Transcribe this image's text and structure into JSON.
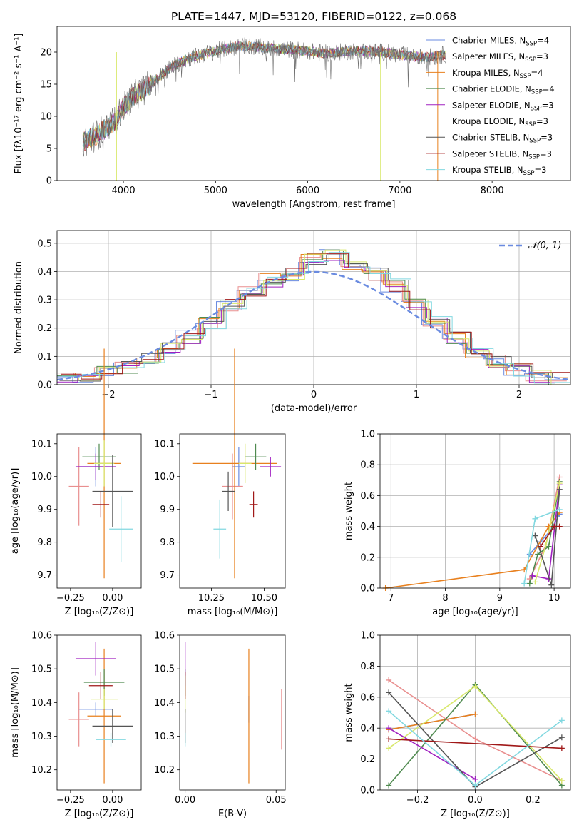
{
  "title": "PLATE=1447, MJD=53120, FIBERID=0122, z=0.068",
  "model_names": [
    "Chabrier MILES, N_SSP=4",
    "Salpeter MILES, N_SSP=3",
    "Kroupa MILES, N_SSP=4",
    "Chabrier ELODIE, N_SSP=4",
    "Salpeter ELODIE, N_SSP=3",
    "Kroupa ELODIE, N_SSP=3",
    "Chabrier STELIB, N_SSP=3",
    "Salpeter STELIB, N_SSP=3",
    "Kroupa STELIB, N_SSP=3"
  ],
  "colors": [
    "#6a8be0",
    "#e98f8f",
    "#e8801e",
    "#4f8a4f",
    "#a020c0",
    "#d8e86a",
    "#555555",
    "#a01818",
    "#82d8e0"
  ],
  "chart_data": [
    {
      "type": "line",
      "title": "PLATE=1447, MJD=53120, FIBERID=0122, z=0.068",
      "xlabel": "wavelength [Angstrom, rest frame]",
      "ylabel": "Flux [fλ10⁻¹⁷ erg cm⁻² s⁻¹ A⁻¹]",
      "xlim": [
        3280,
        8850
      ],
      "ylim": [
        0,
        24
      ],
      "xticks": [
        4000,
        5000,
        6000,
        7000,
        8000
      ],
      "yticks": [
        0,
        5,
        10,
        15,
        20
      ],
      "grid": false,
      "legend": "top-right",
      "continuum": [
        [
          3560,
          6
        ],
        [
          3700,
          7
        ],
        [
          3800,
          8
        ],
        [
          3900,
          9
        ],
        [
          4000,
          11.5
        ],
        [
          4100,
          13
        ],
        [
          4300,
          15
        ],
        [
          4500,
          17.5
        ],
        [
          4700,
          19
        ],
        [
          4900,
          19.8
        ],
        [
          5100,
          20.5
        ],
        [
          5300,
          21
        ],
        [
          5600,
          20.6
        ],
        [
          5900,
          20.3
        ],
        [
          6200,
          19.8
        ],
        [
          6500,
          20.2
        ],
        [
          6800,
          20
        ],
        [
          7100,
          19.4
        ],
        [
          7300,
          19.2
        ],
        [
          7500,
          19.6
        ]
      ],
      "spike_lines": [
        {
          "x": 3925,
          "series": 5
        },
        {
          "x": 6790,
          "series": 5
        },
        {
          "x": 7410,
          "series": 2
        }
      ]
    },
    {
      "type": "line",
      "xlabel": "(data-model)/error",
      "ylabel": "Normed distribution",
      "xlim": [
        -2.5,
        2.5
      ],
      "ylim": [
        0,
        0.545
      ],
      "xticks": [
        -2,
        -1,
        0,
        1,
        2
      ],
      "yticks": [
        0.0,
        0.1,
        0.2,
        0.3,
        0.4,
        0.5
      ],
      "grid": true,
      "legend": "top-right",
      "legend_label": "𝒩(0, 1)",
      "bin_edges": [
        -2.5,
        -2.3,
        -2.1,
        -1.9,
        -1.7,
        -1.5,
        -1.3,
        -1.1,
        -0.9,
        -0.7,
        -0.5,
        -0.3,
        -0.1,
        0.1,
        0.3,
        0.5,
        0.7,
        0.9,
        1.1,
        1.3,
        1.5,
        1.7,
        1.9,
        2.1,
        2.3,
        2.5
      ],
      "histogram_baseline": [
        0.02,
        0.03,
        0.04,
        0.06,
        0.09,
        0.13,
        0.17,
        0.22,
        0.28,
        0.33,
        0.37,
        0.39,
        0.44,
        0.46,
        0.43,
        0.39,
        0.35,
        0.28,
        0.22,
        0.17,
        0.12,
        0.08,
        0.05,
        0.03,
        0.02
      ]
    },
    {
      "type": "scatter",
      "xlabel": "Z [log₁₀(Z/Z⊙)]",
      "ylabel": "age  [log₁₀(age/yr)]",
      "xlim": [
        -0.33,
        0.17
      ],
      "ylim": [
        9.66,
        10.13
      ],
      "xticks": [
        -0.25,
        0.0
      ],
      "yticks": [
        9.7,
        9.8,
        9.9,
        10.0,
        10.1
      ],
      "points": [
        {
          "x": -0.1,
          "y": 10.03,
          "xerr": 0.1,
          "yerr": 0.06
        },
        {
          "x": -0.2,
          "y": 9.97,
          "xerr": 0.06,
          "yerr": 0.12
        },
        {
          "x": -0.05,
          "y": 10.04,
          "xerr": 0.1,
          "yerr": 0.35
        },
        {
          "x": -0.08,
          "y": 10.06,
          "xerr": 0.1,
          "yerr": 0.04
        },
        {
          "x": -0.1,
          "y": 10.03,
          "xerr": 0.12,
          "yerr": 0.04
        },
        {
          "x": -0.05,
          "y": 10.04,
          "xerr": 0.06,
          "yerr": 0.07
        },
        {
          "x": 0.0,
          "y": 9.955,
          "xerr": 0.12,
          "yerr": 0.11
        },
        {
          "x": -0.07,
          "y": 9.915,
          "xerr": 0.05,
          "yerr": 0.04
        },
        {
          "x": 0.05,
          "y": 9.84,
          "xerr": 0.07,
          "yerr": 0.1
        }
      ]
    },
    {
      "type": "scatter",
      "xlabel": "mass [log₁₀(M/M⊙)]",
      "ylabel": "",
      "xlim": [
        10.1,
        10.6
      ],
      "ylim": [
        9.66,
        10.13
      ],
      "xticks": [
        10.25,
        10.5
      ],
      "yticks": [
        9.7,
        9.8,
        9.9,
        10.0,
        10.1
      ],
      "points": [
        {
          "x": 10.38,
          "y": 10.03,
          "xerr": 0.03,
          "yerr": 0.06
        },
        {
          "x": 10.35,
          "y": 9.97,
          "xerr": 0.05,
          "yerr": 0.1
        },
        {
          "x": 10.36,
          "y": 10.04,
          "xerr": 0.2,
          "yerr": 0.35
        },
        {
          "x": 10.46,
          "y": 10.06,
          "xerr": 0.05,
          "yerr": 0.04
        },
        {
          "x": 10.53,
          "y": 10.03,
          "xerr": 0.05,
          "yerr": 0.03
        },
        {
          "x": 10.41,
          "y": 10.04,
          "xerr": 0.03,
          "yerr": 0.06
        },
        {
          "x": 10.33,
          "y": 9.955,
          "xerr": 0.03,
          "yerr": 0.06
        },
        {
          "x": 10.45,
          "y": 9.915,
          "xerr": 0.02,
          "yerr": 0.04
        },
        {
          "x": 10.29,
          "y": 9.84,
          "xerr": 0.03,
          "yerr": 0.09
        }
      ]
    },
    {
      "type": "line",
      "xlabel": "age  [log₁₀(age/yr)]",
      "ylabel": "mass weight",
      "xlim": [
        6.8,
        10.3
      ],
      "ylim": [
        0,
        1.0
      ],
      "xticks": [
        7,
        8,
        9,
        10
      ],
      "yticks": [
        0.0,
        0.2,
        0.4,
        0.6,
        0.8,
        1.0
      ],
      "grid": true,
      "series": [
        {
          "x": [
            9.55,
            9.75,
            9.95,
            10.1
          ],
          "y": [
            0.22,
            0.3,
            0.38,
            0.48
          ]
        },
        {
          "x": [
            9.55,
            9.85,
            10.1
          ],
          "y": [
            0.06,
            0.28,
            0.72
          ]
        },
        {
          "x": [
            6.9,
            9.45,
            9.9,
            10.1
          ],
          "y": [
            0.0,
            0.12,
            0.4,
            0.49
          ]
        },
        {
          "x": [
            9.55,
            9.7,
            9.9,
            10.1
          ],
          "y": [
            0.03,
            0.22,
            0.27,
            0.69
          ]
        },
        {
          "x": [
            9.6,
            9.9,
            10.1
          ],
          "y": [
            0.08,
            0.06,
            0.67
          ]
        },
        {
          "x": [
            9.65,
            9.85,
            10.1
          ],
          "y": [
            0.04,
            0.28,
            0.68
          ]
        },
        {
          "x": [
            9.65,
            9.95,
            10.1
          ],
          "y": [
            0.34,
            0.02,
            0.64
          ]
        },
        {
          "x": [
            9.75,
            10.0,
            10.1
          ],
          "y": [
            0.27,
            0.4,
            0.4
          ]
        },
        {
          "x": [
            9.45,
            9.65,
            10.1
          ],
          "y": [
            0.03,
            0.45,
            0.51
          ]
        }
      ]
    },
    {
      "type": "scatter",
      "xlabel": "Z [log₁₀(Z/Z⊙)]",
      "ylabel": "mass [log₁₀(M/M⊙)]",
      "xlim": [
        -0.33,
        0.17
      ],
      "ylim": [
        10.14,
        10.6
      ],
      "xticks": [
        -0.25,
        0.0
      ],
      "yticks": [
        10.2,
        10.3,
        10.4,
        10.5,
        10.6
      ],
      "points": [
        {
          "x": -0.1,
          "y": 10.38,
          "xerr": 0.1,
          "yerr": 0.02
        },
        {
          "x": -0.2,
          "y": 10.35,
          "xerr": 0.06,
          "yerr": 0.08
        },
        {
          "x": -0.05,
          "y": 10.36,
          "xerr": 0.1,
          "yerr": 0.2
        },
        {
          "x": -0.05,
          "y": 10.46,
          "xerr": 0.12,
          "yerr": 0.04
        },
        {
          "x": -0.1,
          "y": 10.53,
          "xerr": 0.12,
          "yerr": 0.05
        },
        {
          "x": -0.05,
          "y": 10.41,
          "xerr": 0.08,
          "yerr": 0.03
        },
        {
          "x": 0.0,
          "y": 10.33,
          "xerr": 0.12,
          "yerr": 0.05
        },
        {
          "x": -0.07,
          "y": 10.45,
          "xerr": 0.07,
          "yerr": 0.04
        },
        {
          "x": -0.01,
          "y": 10.29,
          "xerr": 0.09,
          "yerr": 0.02
        }
      ]
    },
    {
      "type": "scatter",
      "xlabel": "E(B-V)",
      "ylabel": "",
      "xlim": [
        -0.003,
        0.055
      ],
      "ylim": [
        10.14,
        10.6
      ],
      "xticks": [
        0.0,
        0.05
      ],
      "yticks": [
        10.2,
        10.3,
        10.4,
        10.5,
        10.6
      ],
      "points": [
        {
          "x": 0.035,
          "y": 10.38,
          "xerr": 0,
          "yerr": 0.04
        },
        {
          "x": 0.053,
          "y": 10.35,
          "xerr": 0,
          "yerr": 0.09
        },
        {
          "x": 0.035,
          "y": 10.36,
          "xerr": 0,
          "yerr": 0.2
        },
        {
          "x": 0.0,
          "y": 10.46,
          "xerr": 0,
          "yerr": 0.04
        },
        {
          "x": 0.0,
          "y": 10.53,
          "xerr": 0,
          "yerr": 0.05
        },
        {
          "x": 0.0,
          "y": 10.41,
          "xerr": 0,
          "yerr": 0.04
        },
        {
          "x": 0.0,
          "y": 10.33,
          "xerr": 0,
          "yerr": 0.05
        },
        {
          "x": 0.0,
          "y": 10.45,
          "xerr": 0,
          "yerr": 0.04
        },
        {
          "x": 0.0,
          "y": 10.29,
          "xerr": 0,
          "yerr": 0.02
        }
      ]
    },
    {
      "type": "line",
      "xlabel": "Z [log₁₀(Z/Z⊙)]",
      "ylabel": "mass weight",
      "xlim": [
        -0.33,
        0.33
      ],
      "ylim": [
        0,
        1.0
      ],
      "xticks": [
        -0.2,
        0.0,
        0.2
      ],
      "yticks": [
        0.0,
        0.2,
        0.4,
        0.6,
        0.8,
        1.0
      ],
      "grid": true,
      "series": [
        {
          "x": [
            -0.3,
            0.0
          ],
          "y": [
            0.39,
            0.49
          ]
        },
        {
          "x": [
            -0.3,
            0.0,
            0.3
          ],
          "y": [
            0.71,
            0.33,
            0.06
          ]
        },
        {
          "x": [
            -0.3,
            0.0
          ],
          "y": [
            0.39,
            0.49
          ]
        },
        {
          "x": [
            -0.3,
            0.0,
            0.3
          ],
          "y": [
            0.03,
            0.68,
            0.03
          ]
        },
        {
          "x": [
            -0.3,
            0.0
          ],
          "y": [
            0.4,
            0.07
          ]
        },
        {
          "x": [
            -0.3,
            0.0,
            0.3
          ],
          "y": [
            0.27,
            0.67,
            0.06
          ]
        },
        {
          "x": [
            -0.3,
            0.0,
            0.3
          ],
          "y": [
            0.63,
            0.02,
            0.34
          ]
        },
        {
          "x": [
            -0.3,
            0.3
          ],
          "y": [
            0.33,
            0.27
          ]
        },
        {
          "x": [
            -0.3,
            0.0,
            0.3
          ],
          "y": [
            0.51,
            0.03,
            0.45
          ]
        }
      ]
    }
  ]
}
